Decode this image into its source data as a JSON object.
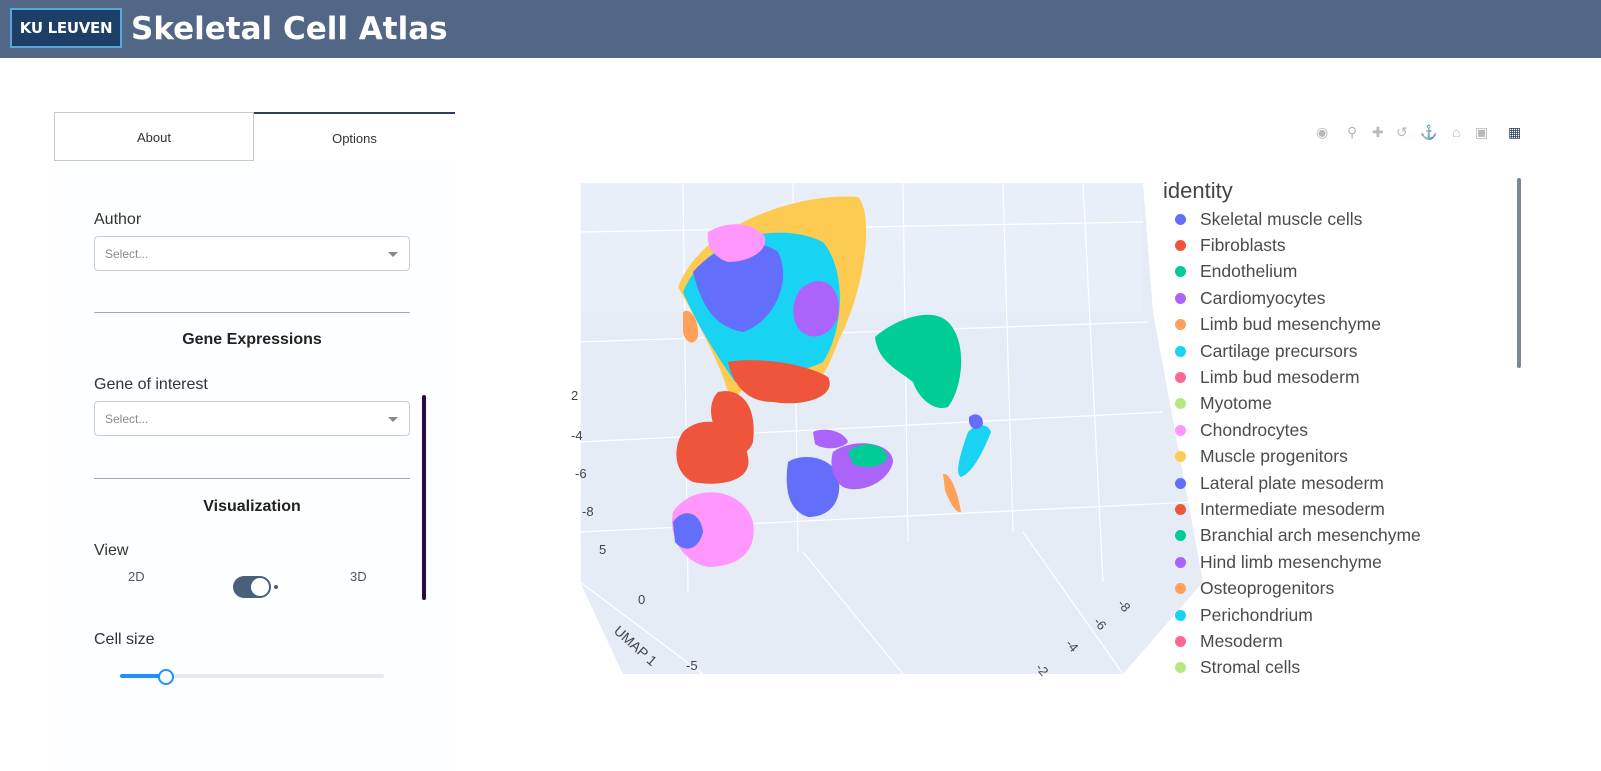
{
  "header": {
    "logo_text": "KU LEUVEN",
    "title": "Skeletal Cell Atlas"
  },
  "sidebar": {
    "tabs": [
      {
        "label": "About"
      },
      {
        "label": "Options"
      }
    ],
    "author_label": "Author",
    "author_placeholder": "Select...",
    "gene_section_title": "Gene Expressions",
    "gene_label": "Gene of interest",
    "gene_placeholder": "Select...",
    "viz_section_title": "Visualization",
    "view_label": "View",
    "view_option_2d": "2D",
    "view_option_3d": "3D",
    "view_selected": "3D",
    "cell_size_label": "Cell size",
    "cell_size_fraction": 0.17
  },
  "plot": {
    "modebar_icons": [
      "camera-icon",
      "zoom-icon",
      "pan-icon",
      "orbit-icon",
      "turntable-icon",
      "home-icon",
      "camera-reset-icon",
      "plotly-logo-icon"
    ],
    "axis": {
      "z_ticks": [
        "2",
        "-4",
        "-6",
        "-8"
      ],
      "x_ticks": [
        "5",
        "0",
        "-5"
      ],
      "x_label": "UMAP 1",
      "y_ticks": [
        "-8",
        "-6",
        "-4",
        "-2"
      ]
    },
    "legend_title": "identity",
    "legend": [
      {
        "label": "Skeletal muscle cells",
        "color": "#636efa"
      },
      {
        "label": "Fibroblasts",
        "color": "#ef553b"
      },
      {
        "label": "Endothelium",
        "color": "#00cc96"
      },
      {
        "label": "Cardiomyocytes",
        "color": "#ab63fa"
      },
      {
        "label": "Limb bud mesenchyme",
        "color": "#ffa15a"
      },
      {
        "label": "Cartilage precursors",
        "color": "#19d3f3"
      },
      {
        "label": "Limb bud mesoderm",
        "color": "#ff6692"
      },
      {
        "label": "Myotome",
        "color": "#b6e880"
      },
      {
        "label": "Chondrocytes",
        "color": "#ff97ff"
      },
      {
        "label": "Muscle progenitors",
        "color": "#fecb52"
      },
      {
        "label": "Lateral plate mesoderm",
        "color": "#636efa"
      },
      {
        "label": "Intermediate mesoderm",
        "color": "#ef553b"
      },
      {
        "label": "Branchial arch mesenchyme",
        "color": "#00cc96"
      },
      {
        "label": "Hind limb mesenchyme",
        "color": "#ab63fa"
      },
      {
        "label": "Osteoprogenitors",
        "color": "#ffa15a"
      },
      {
        "label": "Perichondrium",
        "color": "#19d3f3"
      },
      {
        "label": "Mesoderm",
        "color": "#ff6692"
      },
      {
        "label": "Stromal cells",
        "color": "#b6e880"
      }
    ]
  }
}
